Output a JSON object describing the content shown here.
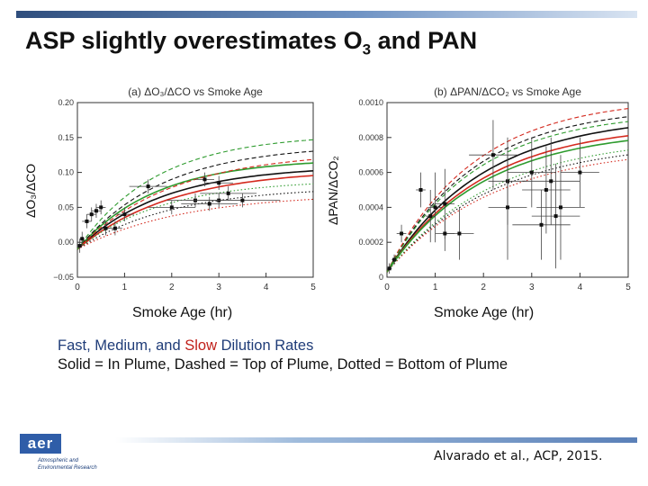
{
  "slide": {
    "title_main": "ASP slightly overestimates O",
    "title_sub": "3",
    "title_end": " and PAN",
    "legend_line1": [
      {
        "text": "Fast,",
        "color": "blue"
      },
      {
        "text": " Medium, and ",
        "color": "blue"
      },
      {
        "text": "Slow",
        "color": "red"
      },
      {
        "text": " Dilution Rates",
        "color": "blue"
      }
    ],
    "legend_line2": "Solid = In Plume, Dashed = Top of Plume,  Dotted = Bottom of Plume",
    "logo_text": "aer",
    "logo_line1": "Atmospheric and",
    "logo_line2": "Environmental Research",
    "citation": "Alvarado et al., ACP, 2015."
  },
  "colors": {
    "blue": "#1f3c78",
    "red": "#c0201a",
    "green": "#2e8b2e",
    "black": "#111111"
  },
  "chart_data": [
    {
      "type": "line",
      "title": "(a) ΔO₃/ΔCO  vs  Smoke Age",
      "ylabel": "ΔO₃/ΔCO",
      "xlabel": "Smoke Age (hr)",
      "xlim": [
        0,
        5
      ],
      "ylim": [
        -0.05,
        0.2
      ],
      "xticks": [
        0,
        1,
        2,
        3,
        4,
        5
      ],
      "yticks": [
        -0.05,
        0.0,
        0.05,
        0.1,
        0.15,
        0.2
      ],
      "ytick_labels": [
        "−0.05",
        "0.00",
        "0.05",
        "0.10",
        "0.15",
        "0.20"
      ],
      "series": [
        {
          "color": "black",
          "style": "solid",
          "plateau": 0.12,
          "rate": 0.55
        },
        {
          "color": "red",
          "style": "solid",
          "plateau": 0.115,
          "rate": 0.5
        },
        {
          "color": "green",
          "style": "solid",
          "plateau": 0.13,
          "rate": 0.6
        },
        {
          "color": "black",
          "style": "dashed",
          "plateau": 0.15,
          "rate": 0.55
        },
        {
          "color": "red",
          "style": "dashed",
          "plateau": 0.14,
          "rate": 0.5
        },
        {
          "color": "green",
          "style": "dashed",
          "plateau": 0.165,
          "rate": 0.6
        },
        {
          "color": "black",
          "style": "dotted",
          "plateau": 0.09,
          "rate": 0.5
        },
        {
          "color": "red",
          "style": "dotted",
          "plateau": 0.08,
          "rate": 0.45
        },
        {
          "color": "green",
          "style": "dotted",
          "plateau": 0.1,
          "rate": 0.55
        }
      ],
      "points": [
        {
          "x": 0.05,
          "y": -0.005,
          "xerr": 0.05,
          "yerr": 0.01
        },
        {
          "x": 0.1,
          "y": 0.005,
          "xerr": 0.05,
          "yerr": 0.01
        },
        {
          "x": 0.2,
          "y": 0.03,
          "xerr": 0.1,
          "yerr": 0.01
        },
        {
          "x": 0.3,
          "y": 0.04,
          "xerr": 0.1,
          "yerr": 0.01
        },
        {
          "x": 0.4,
          "y": 0.045,
          "xerr": 0.1,
          "yerr": 0.01
        },
        {
          "x": 0.5,
          "y": 0.05,
          "xerr": 0.1,
          "yerr": 0.01
        },
        {
          "x": 0.6,
          "y": 0.02,
          "xerr": 0.1,
          "yerr": 0.01
        },
        {
          "x": 0.8,
          "y": 0.02,
          "xerr": 0.15,
          "yerr": 0.01
        },
        {
          "x": 1.0,
          "y": 0.04,
          "xerr": 0.2,
          "yerr": 0.01
        },
        {
          "x": 1.5,
          "y": 0.08,
          "xerr": 0.4,
          "yerr": 0.01
        },
        {
          "x": 2.0,
          "y": 0.05,
          "xerr": 0.5,
          "yerr": 0.01
        },
        {
          "x": 2.5,
          "y": 0.06,
          "xerr": 0.6,
          "yerr": 0.01
        },
        {
          "x": 2.8,
          "y": 0.055,
          "xerr": 0.6,
          "yerr": 0.01
        },
        {
          "x": 3.0,
          "y": 0.06,
          "xerr": 0.7,
          "yerr": 0.01
        },
        {
          "x": 3.2,
          "y": 0.07,
          "xerr": 0.6,
          "yerr": 0.01
        },
        {
          "x": 3.5,
          "y": 0.06,
          "xerr": 0.8,
          "yerr": 0.01
        },
        {
          "x": 2.7,
          "y": 0.09,
          "xerr": 0.2,
          "yerr": 0.01
        },
        {
          "x": 3.0,
          "y": 0.085,
          "xerr": 0.3,
          "yerr": 0.01
        }
      ]
    },
    {
      "type": "line",
      "title": "(b) ΔPAN/ΔCO₂  vs  Smoke Age",
      "ylabel": "ΔPAN/ΔCO₂",
      "xlabel": "Smoke Age (hr)",
      "xlim": [
        0,
        5
      ],
      "ylim": [
        0,
        0.001
      ],
      "xticks": [
        0,
        1,
        2,
        3,
        4,
        5
      ],
      "yticks": [
        0,
        0.0002,
        0.0004,
        0.0006,
        0.0008,
        0.001
      ],
      "ytick_labels": [
        "0",
        "0.0002",
        "0.0004",
        "0.0006",
        "0.0008",
        "0.0010"
      ],
      "series": [
        {
          "color": "black",
          "style": "solid",
          "plateau": 0.0009,
          "rate": 0.5
        },
        {
          "color": "red",
          "style": "solid",
          "plateau": 0.00085,
          "rate": 0.5
        },
        {
          "color": "green",
          "style": "solid",
          "plateau": 0.00082,
          "rate": 0.5
        },
        {
          "color": "black",
          "style": "dashed",
          "plateau": 0.00095,
          "rate": 0.55
        },
        {
          "color": "red",
          "style": "dashed",
          "plateau": 0.001,
          "rate": 0.55
        },
        {
          "color": "green",
          "style": "dashed",
          "plateau": 0.00092,
          "rate": 0.55
        },
        {
          "color": "black",
          "style": "dotted",
          "plateau": 0.00075,
          "rate": 0.45
        },
        {
          "color": "red",
          "style": "dotted",
          "plateau": 0.00072,
          "rate": 0.45
        },
        {
          "color": "green",
          "style": "dotted",
          "plateau": 0.00078,
          "rate": 0.45
        }
      ],
      "points": [
        {
          "x": 0.05,
          "y": 5e-05,
          "xerr": 0.05,
          "yerr": 3e-05
        },
        {
          "x": 0.15,
          "y": 0.0001,
          "xerr": 0.05,
          "yerr": 3e-05
        },
        {
          "x": 0.3,
          "y": 0.00025,
          "xerr": 0.1,
          "yerr": 5e-05
        },
        {
          "x": 0.7,
          "y": 0.0005,
          "xerr": 0.1,
          "yerr": 0.0001
        },
        {
          "x": 0.9,
          "y": 0.00035,
          "xerr": 0.1,
          "yerr": 0.00015
        },
        {
          "x": 1.0,
          "y": 0.0004,
          "xerr": 0.15,
          "yerr": 0.0002
        },
        {
          "x": 1.2,
          "y": 0.00042,
          "xerr": 0.2,
          "yerr": 0.0002
        },
        {
          "x": 1.5,
          "y": 0.00025,
          "xerr": 0.3,
          "yerr": 0.00015
        },
        {
          "x": 1.2,
          "y": 0.00025,
          "xerr": 0.2,
          "yerr": 0.0001
        },
        {
          "x": 2.2,
          "y": 0.0007,
          "xerr": 0.5,
          "yerr": 0.0002
        },
        {
          "x": 2.5,
          "y": 0.00055,
          "xerr": 0.4,
          "yerr": 0.00025
        },
        {
          "x": 2.5,
          "y": 0.0004,
          "xerr": 0.4,
          "yerr": 0.0003
        },
        {
          "x": 3.0,
          "y": 0.0006,
          "xerr": 0.5,
          "yerr": 0.0002
        },
        {
          "x": 3.2,
          "y": 0.0003,
          "xerr": 0.6,
          "yerr": 0.0002
        },
        {
          "x": 3.3,
          "y": 0.0005,
          "xerr": 0.5,
          "yerr": 0.00025
        },
        {
          "x": 3.4,
          "y": 0.00055,
          "xerr": 0.6,
          "yerr": 0.00025
        },
        {
          "x": 3.5,
          "y": 0.00035,
          "xerr": 0.5,
          "yerr": 0.0003
        },
        {
          "x": 3.6,
          "y": 0.0004,
          "xerr": 0.5,
          "yerr": 0.0003
        },
        {
          "x": 4.0,
          "y": 0.0006,
          "xerr": 0.4,
          "yerr": 0.0002
        }
      ]
    }
  ]
}
